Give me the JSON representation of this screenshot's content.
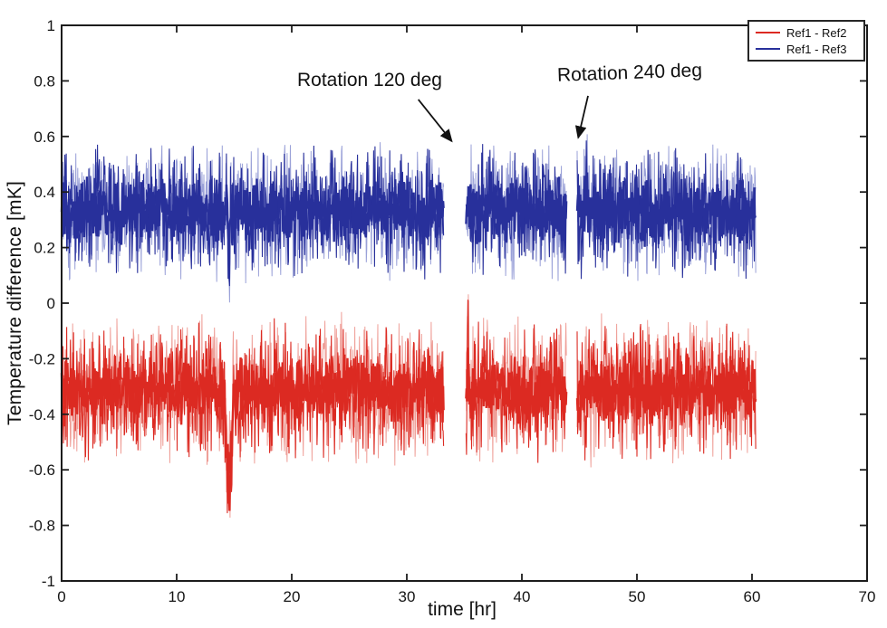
{
  "figure": {
    "background": "#ffffff",
    "axis_color": "#1c1c1c"
  },
  "chart_data": {
    "type": "line",
    "title": "",
    "xlabel": "time [hr]",
    "ylabel": "Temperature difference [mK]",
    "xlim": [
      0,
      70
    ],
    "ylim": [
      -1,
      1
    ],
    "xticks": [
      0,
      10,
      20,
      30,
      40,
      50,
      60,
      70
    ],
    "yticks": [
      -1,
      -0.8,
      -0.6,
      -0.4,
      -0.2,
      0,
      0.2,
      0.4,
      0.6,
      0.8,
      1
    ],
    "grid": false,
    "legend": {
      "position": "top-right",
      "entries": [
        "Ref1 - Ref2",
        "Ref1 - Ref3"
      ]
    },
    "sample_step": 0.04,
    "noise_seed": 1337,
    "data_gaps_hr": [
      [
        33.2,
        35.15
      ],
      [
        43.9,
        44.8
      ]
    ],
    "series": [
      {
        "name": "Ref1 - Ref2",
        "color": "#dc2a22",
        "light_color": "#ef9f98",
        "baseline": -0.31,
        "core_amp": 0.13,
        "spike_amp": 0.29,
        "segments": [
          [
            0,
            33.2
          ],
          [
            35.15,
            43.9
          ],
          [
            44.8,
            60.35
          ]
        ],
        "events": [
          {
            "t": 14.55,
            "amp": -0.33,
            "sigma": 0.3
          },
          {
            "t": 35.3,
            "amp": 0.18,
            "sigma": 0.07
          }
        ]
      },
      {
        "name": "Ref1 - Ref3",
        "color": "#28309b",
        "light_color": "#9aa1d8",
        "baseline": 0.33,
        "core_amp": 0.13,
        "spike_amp": 0.27,
        "segments": [
          [
            0,
            33.2
          ],
          [
            35.15,
            43.9
          ],
          [
            44.8,
            60.35
          ]
        ],
        "events": [
          {
            "t": 14.55,
            "amp": -0.22,
            "sigma": 0.09
          },
          {
            "t": 37.3,
            "amp": 0.1,
            "sigma": 0.2
          },
          {
            "t": 45.6,
            "amp": 0.1,
            "sigma": 0.12
          }
        ]
      }
    ],
    "annotations": [
      {
        "text": "Rotation 120 deg",
        "arrow_from": {
          "t": 31.0,
          "y": 0.733
        },
        "arrow_to": {
          "t": 33.9,
          "y": 0.583
        }
      },
      {
        "text": "Rotation 240 deg",
        "arrow_from": {
          "t": 45.75,
          "y": 0.746
        },
        "arrow_to": {
          "t": 44.9,
          "y": 0.596
        }
      }
    ]
  }
}
